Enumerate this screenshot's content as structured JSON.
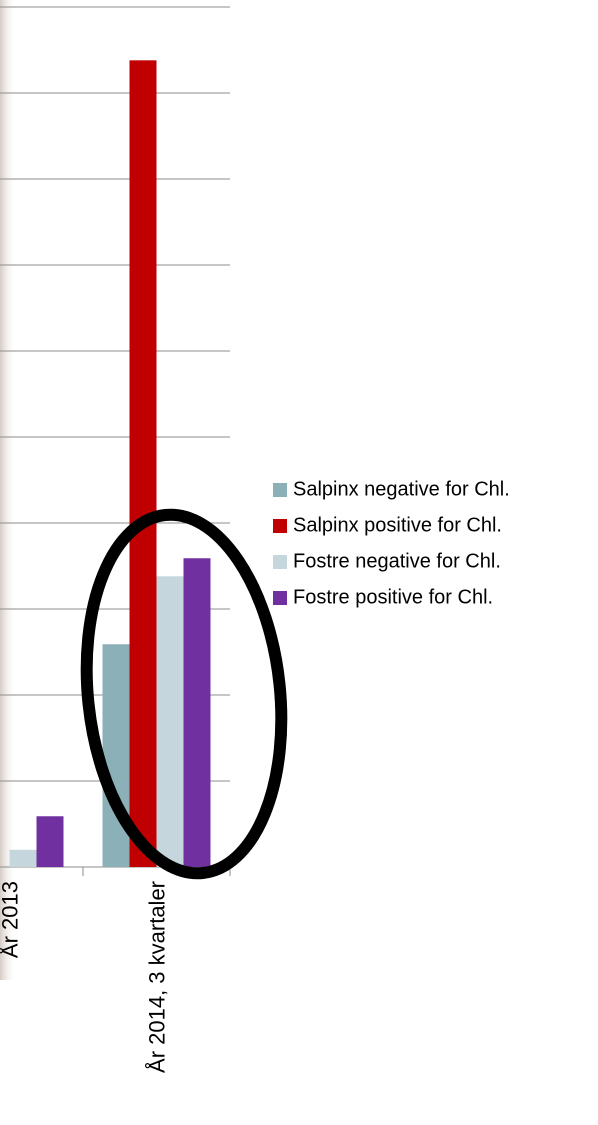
{
  "chart_data": {
    "type": "bar",
    "categories": [
      "År 2013",
      "År 2014, 3 kvartaler"
    ],
    "series": [
      {
        "name": "Salpinx negative for Chl.",
        "color": "#8bb0b8",
        "values": [
          null,
          2.59
        ]
      },
      {
        "name": "Salpinx positive for Chl.",
        "color": "#c00000",
        "values": [
          null,
          9.38
        ]
      },
      {
        "name": "Fostre negative for Chl.",
        "color": "#c5d6dc",
        "values": [
          0.2,
          3.38
        ]
      },
      {
        "name": "Fostre positive for Chl.",
        "color": "#7030a0",
        "values": [
          0.59,
          3.59
        ]
      }
    ],
    "ylim": [
      0,
      10
    ],
    "yticks": [
      0,
      1,
      2,
      3,
      4,
      5,
      6,
      7,
      8,
      9,
      10
    ],
    "grid": true,
    "legend": "right"
  }
}
